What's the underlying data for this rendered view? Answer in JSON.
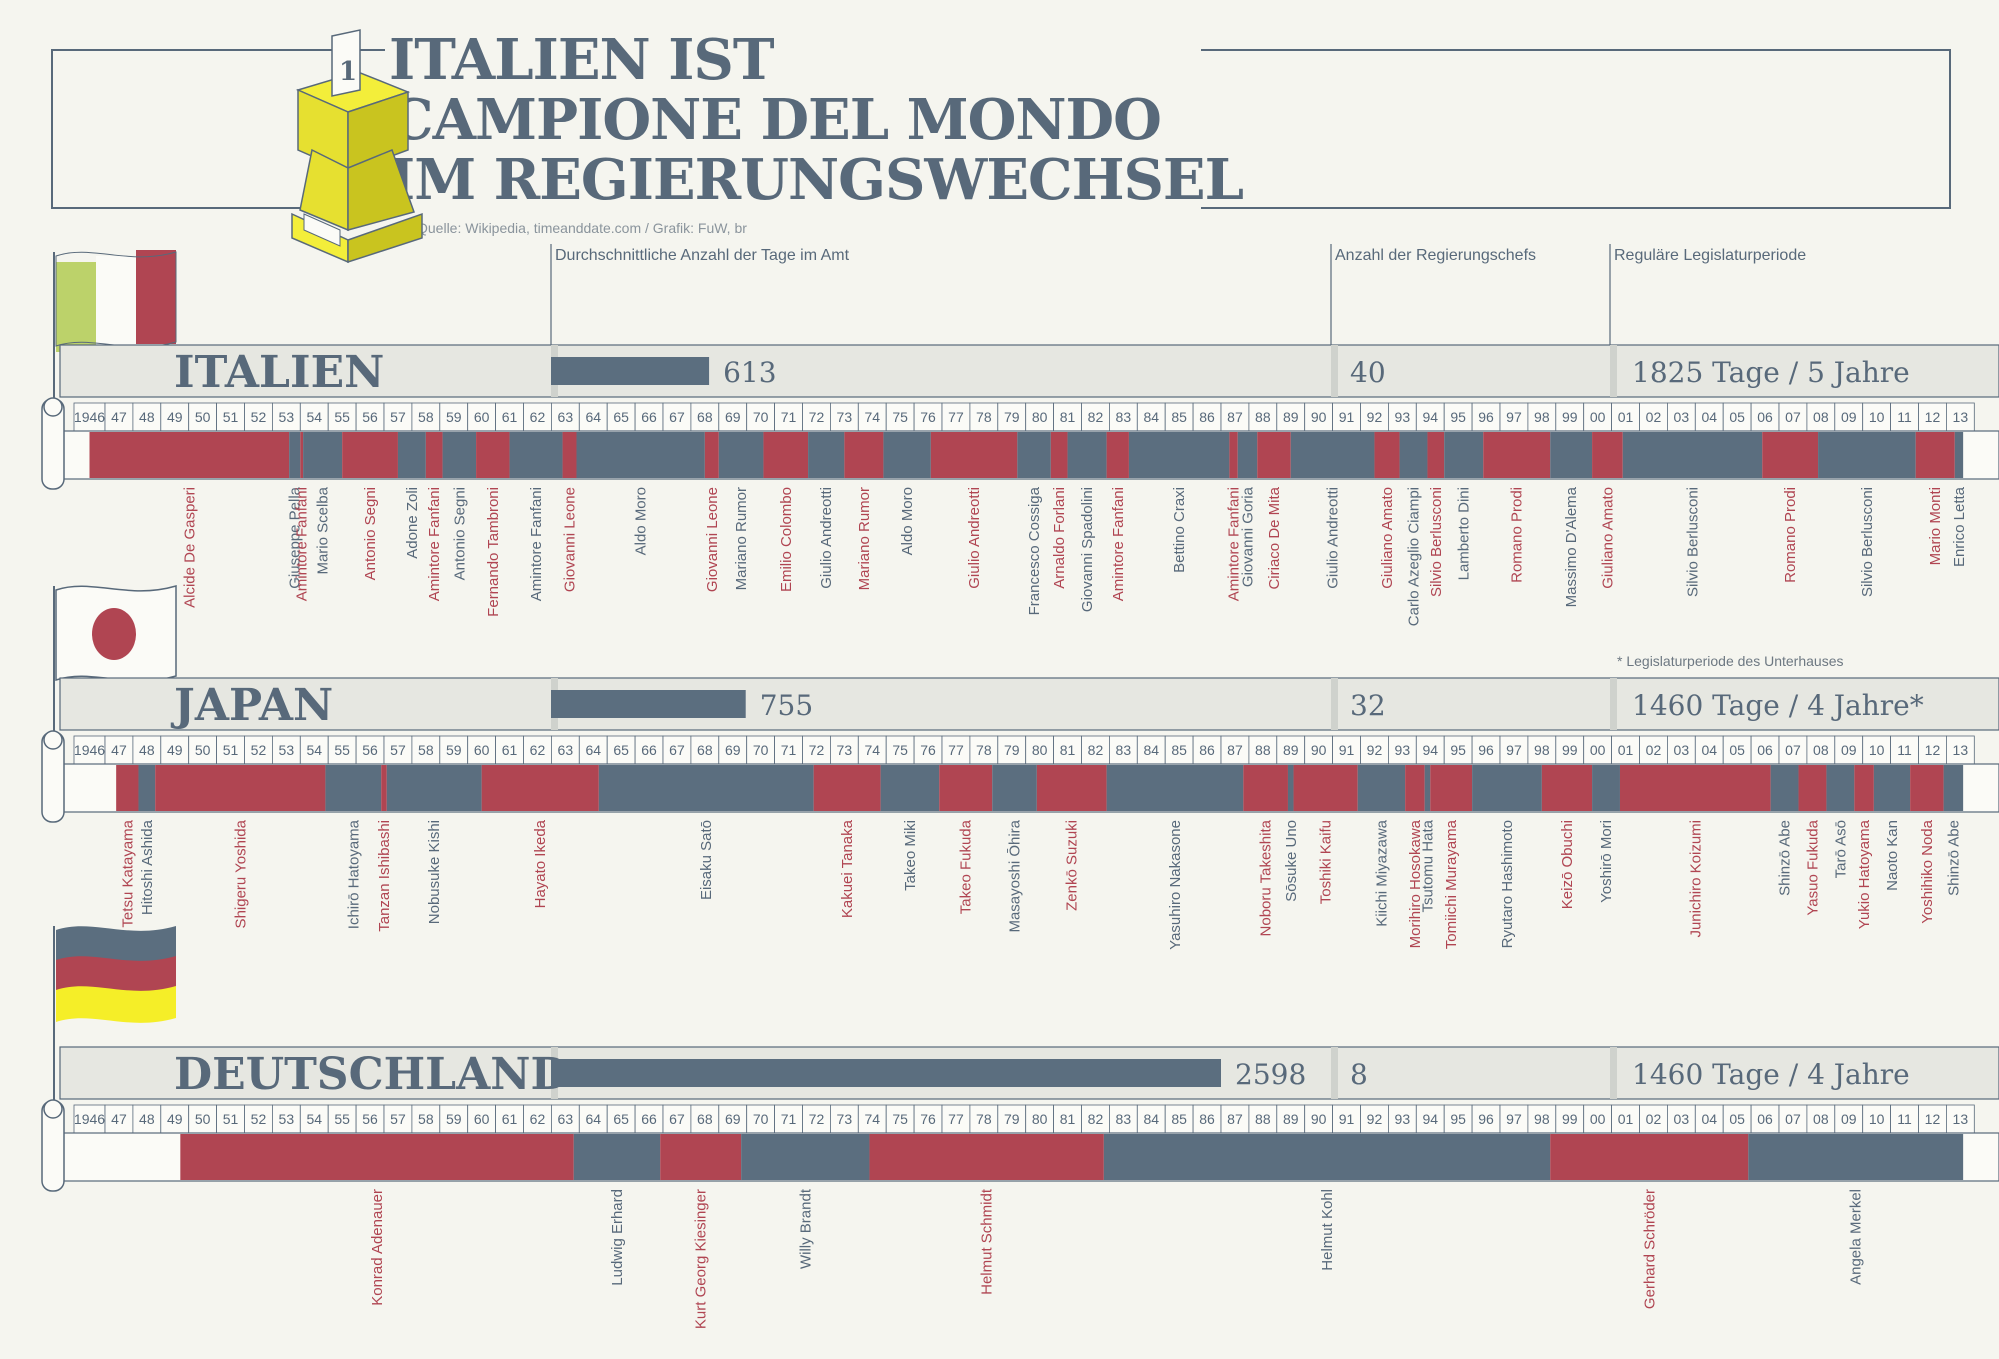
{
  "header": {
    "title_lines": [
      "ITALIEN IST",
      "CAMPIONE DEL MONDO",
      "IM REGIERUNGSWECHSEL"
    ],
    "source": "Quelle: Wikipedia, timeanddate.com / Grafik: FuW, br",
    "trophy_number": "1"
  },
  "column_headers": {
    "avg_days": "Durchschnittliche Anzahl der Tage im Amt",
    "count": "Anzahl der Regierungschefs",
    "term": "Reguläre Legislaturperiode"
  },
  "footnote": "* Legislaturperiode des Unterhauses",
  "year_labels": [
    "1946",
    "47",
    "48",
    "49",
    "50",
    "51",
    "52",
    "53",
    "54",
    "55",
    "56",
    "57",
    "58",
    "59",
    "60",
    "61",
    "62",
    "63",
    "64",
    "65",
    "66",
    "67",
    "68",
    "69",
    "70",
    "71",
    "72",
    "73",
    "74",
    "75",
    "76",
    "77",
    "78",
    "79",
    "80",
    "81",
    "82",
    "83",
    "84",
    "85",
    "86",
    "87",
    "88",
    "89",
    "90",
    "91",
    "92",
    "93",
    "94",
    "95",
    "96",
    "97",
    "98",
    "99",
    "00",
    "01",
    "02",
    "03",
    "04",
    "05",
    "06",
    "07",
    "08",
    "09",
    "10",
    "11",
    "12",
    "13"
  ],
  "colors": {
    "red": "#b04552",
    "slate": "#5b6e7f",
    "panel": "#e6e7e1",
    "line": "#58697a",
    "italy_green": "#bcd26a",
    "japan_red": "#b04552",
    "germany_black": "#5b6e7f",
    "germany_red": "#b04552",
    "germany_gold": "#f5ee28"
  },
  "chart_data": {
    "type": "bar",
    "title": "ITALIEN IST CAMPIONE DEL MONDO IM REGIERUNGSWECHSEL",
    "categories": [
      "ITALIEN",
      "JAPAN",
      "DEUTSCHLAND"
    ],
    "series": [
      {
        "name": "Durchschnittliche Anzahl der Tage im Amt",
        "values": [
          613,
          755,
          2598
        ]
      },
      {
        "name": "Anzahl der Regierungschefs",
        "values": [
          40,
          32,
          8
        ]
      }
    ],
    "countries": [
      {
        "name": "ITALIEN",
        "flag": "italy",
        "avg_days": 613,
        "count": 40,
        "term": "1825 Tage / 5 Jahre",
        "segments": [
          {
            "start": 1946.5,
            "end": 1953.6,
            "color": "red",
            "label": "Alcide De Gasperi"
          },
          {
            "start": 1953.6,
            "end": 1954.0,
            "color": "slate",
            "label": "Giuseppe Pella"
          },
          {
            "start": 1954.0,
            "end": 1954.1,
            "color": "red",
            "label": "Amintore Fanfani"
          },
          {
            "start": 1954.1,
            "end": 1955.5,
            "color": "slate",
            "label": "Mario Scelba"
          },
          {
            "start": 1955.5,
            "end": 1957.5,
            "color": "red",
            "label": "Antonio Segni"
          },
          {
            "start": 1957.5,
            "end": 1958.5,
            "color": "slate",
            "label": "Adone Zoli"
          },
          {
            "start": 1958.5,
            "end": 1959.1,
            "color": "red",
            "label": "Amintore Fanfani"
          },
          {
            "start": 1959.1,
            "end": 1960.3,
            "color": "slate",
            "label": "Antonio Segni"
          },
          {
            "start": 1960.3,
            "end": 1961.5,
            "color": "red",
            "label": "Fernando Tambroni"
          },
          {
            "start": 1961.5,
            "end": 1963.4,
            "color": "slate",
            "label": "Amintore Fanfani"
          },
          {
            "start": 1963.4,
            "end": 1963.9,
            "color": "red",
            "label": "Giovanni Leone"
          },
          {
            "start": 1963.9,
            "end": 1968.5,
            "color": "slate",
            "label": "Aldo Moro"
          },
          {
            "start": 1968.5,
            "end": 1969.0,
            "color": "red",
            "label": "Giovanni Leone"
          },
          {
            "start": 1969.0,
            "end": 1970.6,
            "color": "slate",
            "label": "Mariano Rumor"
          },
          {
            "start": 1970.6,
            "end": 1972.2,
            "color": "red",
            "label": "Emilio Colombo"
          },
          {
            "start": 1972.2,
            "end": 1973.5,
            "color": "slate",
            "label": "Giulio Andreotti"
          },
          {
            "start": 1973.5,
            "end": 1974.9,
            "color": "red",
            "label": "Mariano Rumor"
          },
          {
            "start": 1974.9,
            "end": 1976.6,
            "color": "slate",
            "label": "Aldo Moro"
          },
          {
            "start": 1976.6,
            "end": 1979.7,
            "color": "red",
            "label": "Giulio Andreotti"
          },
          {
            "start": 1979.7,
            "end": 1980.9,
            "color": "slate",
            "label": "Francesco Cossiga"
          },
          {
            "start": 1980.9,
            "end": 1981.5,
            "color": "red",
            "label": "Arnaldo Forlani"
          },
          {
            "start": 1981.5,
            "end": 1982.9,
            "color": "slate",
            "label": "Giovanni Spadolini"
          },
          {
            "start": 1982.9,
            "end": 1983.7,
            "color": "red",
            "label": "Amintore Fanfani"
          },
          {
            "start": 1983.7,
            "end": 1987.3,
            "color": "slate",
            "label": "Bettino Craxi"
          },
          {
            "start": 1987.3,
            "end": 1987.6,
            "color": "red",
            "label": "Amintore Fanfani"
          },
          {
            "start": 1987.6,
            "end": 1988.3,
            "color": "slate",
            "label": "Giovanni Goria"
          },
          {
            "start": 1988.3,
            "end": 1989.5,
            "color": "red",
            "label": "Ciriaco De Mita"
          },
          {
            "start": 1989.5,
            "end": 1992.5,
            "color": "slate",
            "label": "Giulio Andreotti"
          },
          {
            "start": 1992.5,
            "end": 1993.4,
            "color": "red",
            "label": "Giuliano Amato"
          },
          {
            "start": 1993.4,
            "end": 1994.4,
            "color": "slate",
            "label": "Carlo Azeglio Ciampi"
          },
          {
            "start": 1994.4,
            "end": 1995.0,
            "color": "red",
            "label": "Silvio Berlusconi"
          },
          {
            "start": 1995.0,
            "end": 1996.4,
            "color": "slate",
            "label": "Lamberto Dini"
          },
          {
            "start": 1996.4,
            "end": 1998.8,
            "color": "red",
            "label": "Romano Prodi"
          },
          {
            "start": 1998.8,
            "end": 2000.3,
            "color": "slate",
            "label": "Massimo D'Alema"
          },
          {
            "start": 2000.3,
            "end": 2001.4,
            "color": "red",
            "label": "Giuliano Amato"
          },
          {
            "start": 2001.4,
            "end": 2006.4,
            "color": "slate",
            "label": "Silvio Berlusconi"
          },
          {
            "start": 2006.4,
            "end": 2008.4,
            "color": "red",
            "label": "Romano Prodi"
          },
          {
            "start": 2008.4,
            "end": 2011.9,
            "color": "slate",
            "label": "Silvio Berlusconi"
          },
          {
            "start": 2011.9,
            "end": 2013.3,
            "color": "red",
            "label": "Mario Monti"
          },
          {
            "start": 2013.3,
            "end": 2013.6,
            "color": "slate",
            "label": "Enrico Letta"
          }
        ]
      },
      {
        "name": "JAPAN",
        "flag": "japan",
        "avg_days": 755,
        "count": 32,
        "term": "1460 Tage / 4 Jahre*",
        "segments": [
          {
            "start": 1946.0,
            "end": 1947.4,
            "color": "none",
            "label": ""
          },
          {
            "start": 1947.4,
            "end": 1948.2,
            "color": "red",
            "label": "Tetsu Katayama"
          },
          {
            "start": 1948.2,
            "end": 1948.8,
            "color": "slate",
            "label": "Hitoshi Ashida"
          },
          {
            "start": 1948.8,
            "end": 1954.9,
            "color": "red",
            "label": "Shigeru Yoshida"
          },
          {
            "start": 1954.9,
            "end": 1956.9,
            "color": "slate",
            "label": "Ichirō Hatoyama"
          },
          {
            "start": 1956.9,
            "end": 1957.1,
            "color": "red",
            "label": "Tanzan Ishibashi"
          },
          {
            "start": 1957.1,
            "end": 1960.5,
            "color": "slate",
            "label": "Nobusuke Kishi"
          },
          {
            "start": 1960.5,
            "end": 1964.7,
            "color": "red",
            "label": "Hayato Ikeda"
          },
          {
            "start": 1964.7,
            "end": 1972.4,
            "color": "slate",
            "label": "Eisaku Satō"
          },
          {
            "start": 1972.4,
            "end": 1974.8,
            "color": "red",
            "label": "Kakuei Tanaka"
          },
          {
            "start": 1974.8,
            "end": 1976.9,
            "color": "slate",
            "label": "Takeo Miki"
          },
          {
            "start": 1976.9,
            "end": 1978.8,
            "color": "red",
            "label": "Takeo Fukuda"
          },
          {
            "start": 1978.8,
            "end": 1980.4,
            "color": "slate",
            "label": "Masayoshi Ōhira"
          },
          {
            "start": 1980.4,
            "end": 1982.9,
            "color": "red",
            "label": "Zenkō Suzuki"
          },
          {
            "start": 1982.9,
            "end": 1987.8,
            "color": "slate",
            "label": "Yasuhiro Nakasone"
          },
          {
            "start": 1987.8,
            "end": 1989.4,
            "color": "red",
            "label": "Noboru Takeshita"
          },
          {
            "start": 1989.4,
            "end": 1989.6,
            "color": "slate",
            "label": "Sōsuke Uno"
          },
          {
            "start": 1989.6,
            "end": 1991.9,
            "color": "red",
            "label": "Toshiki Kaifu"
          },
          {
            "start": 1991.9,
            "end": 1993.6,
            "color": "slate",
            "label": "Kiichi Miyazawa"
          },
          {
            "start": 1993.6,
            "end": 1994.3,
            "color": "red",
            "label": "Morihiro Hosokawa"
          },
          {
            "start": 1994.3,
            "end": 1994.5,
            "color": "slate",
            "label": "Tsutomu Hata"
          },
          {
            "start": 1994.5,
            "end": 1996.0,
            "color": "red",
            "label": "Tomiichi Murayama"
          },
          {
            "start": 1996.0,
            "end": 1998.5,
            "color": "slate",
            "label": "Ryutaro Hashimoto"
          },
          {
            "start": 1998.5,
            "end": 2000.3,
            "color": "red",
            "label": "Keizō Obuchi"
          },
          {
            "start": 2000.3,
            "end": 2001.3,
            "color": "slate",
            "label": "Yoshirō Mori"
          },
          {
            "start": 2001.3,
            "end": 2006.7,
            "color": "red",
            "label": "Junichiro Koizumi"
          },
          {
            "start": 2006.7,
            "end": 2007.7,
            "color": "slate",
            "label": "Shinzō Abe"
          },
          {
            "start": 2007.7,
            "end": 2008.7,
            "color": "red",
            "label": "Yasuo Fukuda"
          },
          {
            "start": 2008.7,
            "end": 2009.7,
            "color": "slate",
            "label": "Tarō Asō"
          },
          {
            "start": 2009.7,
            "end": 2010.4,
            "color": "red",
            "label": "Yukio Hatoyama"
          },
          {
            "start": 2010.4,
            "end": 2011.7,
            "color": "slate",
            "label": "Naoto Kan"
          },
          {
            "start": 2011.7,
            "end": 2012.9,
            "color": "red",
            "label": "Yoshihiko Noda"
          },
          {
            "start": 2012.9,
            "end": 2013.6,
            "color": "slate",
            "label": "Shinzō Abe"
          }
        ]
      },
      {
        "name": "DEUTSCHLAND",
        "flag": "germany",
        "avg_days": 2598,
        "count": 8,
        "term": "1460 Tage / 4 Jahre",
        "segments": [
          {
            "start": 1949.7,
            "end": 1963.8,
            "color": "red",
            "label": "Konrad Adenauer"
          },
          {
            "start": 1963.8,
            "end": 1966.9,
            "color": "slate",
            "label": "Ludwig Erhard"
          },
          {
            "start": 1966.9,
            "end": 1969.8,
            "color": "red",
            "label": "Kurt Georg Kiesinger"
          },
          {
            "start": 1969.8,
            "end": 1974.4,
            "color": "slate",
            "label": "Willy Brandt"
          },
          {
            "start": 1974.4,
            "end": 1982.8,
            "color": "red",
            "label": "Helmut Schmidt"
          },
          {
            "start": 1982.8,
            "end": 1998.8,
            "color": "slate",
            "label": "Helmut Kohl"
          },
          {
            "start": 1998.8,
            "end": 2005.9,
            "color": "red",
            "label": "Gerhard Schröder"
          },
          {
            "start": 2005.9,
            "end": 2013.6,
            "color": "slate",
            "label": "Angela Merkel"
          }
        ]
      }
    ]
  }
}
